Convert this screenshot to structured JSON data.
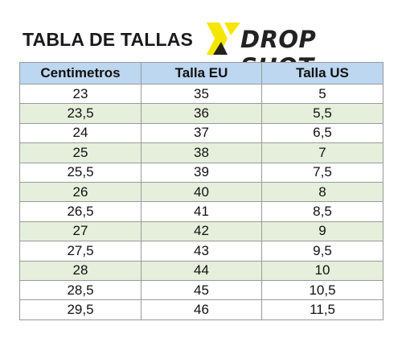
{
  "title": "TABLA DE TALLAS",
  "brand": {
    "name": "DROP SHOT",
    "accent_color": "#f5e600"
  },
  "colors": {
    "header_bg": "#bcd7ef",
    "alt_row_bg": "#e5efdc",
    "border": "#9a9a9a"
  },
  "table": {
    "headers": [
      "Centimetros",
      "Talla EU",
      "Talla US"
    ],
    "rows": [
      [
        "23",
        "35",
        "5"
      ],
      [
        "23,5",
        "36",
        "5,5"
      ],
      [
        "24",
        "37",
        "6,5"
      ],
      [
        "25",
        "38",
        "7"
      ],
      [
        "25,5",
        "39",
        "7,5"
      ],
      [
        "26",
        "40",
        "8"
      ],
      [
        "26,5",
        "41",
        "8,5"
      ],
      [
        "27",
        "42",
        "9"
      ],
      [
        "27,5",
        "43",
        "9,5"
      ],
      [
        "28",
        "44",
        "10"
      ],
      [
        "28,5",
        "45",
        "10,5"
      ],
      [
        "29,5",
        "46",
        "11,5"
      ]
    ]
  }
}
